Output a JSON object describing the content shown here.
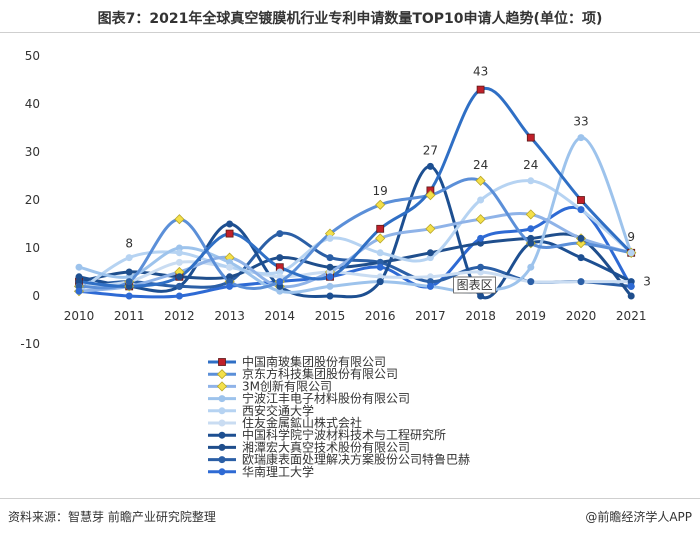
{
  "title": "图表7：2021年全球真空镀膜机行业专利申请数量TOP10申请人趋势(单位：项)",
  "source": "资料来源：智慧芽 前瞻产业研究院整理",
  "brand": "@前瞻经济学人APP",
  "chart_area_label": "图表区",
  "chart_data": {
    "type": "line",
    "x": [
      "2010",
      "2011",
      "2012",
      "2013",
      "2014",
      "2015",
      "2016",
      "2017",
      "2018",
      "2019",
      "2020",
      "2021"
    ],
    "ylim": [
      -10,
      50
    ],
    "yticks": [
      "-10",
      "0",
      "10",
      "20",
      "30",
      "40",
      "50"
    ],
    "grid": false,
    "legend_position": "bottom",
    "series": [
      {
        "name": "中国南玻集团股份有限公司",
        "color": "#2f6fc5",
        "marker": "square-red",
        "values": [
          3,
          2,
          4,
          13,
          6,
          4,
          14,
          22,
          43,
          33,
          20,
          9
        ]
      },
      {
        "name": "京东方科技集团股份有限公司",
        "color": "#5b8fd8",
        "marker": "diamond-yellow",
        "values": [
          2,
          3,
          16,
          3,
          3,
          13,
          19,
          21,
          24,
          11,
          11,
          9
        ]
      },
      {
        "name": "3M创新有限公司",
        "color": "#8fb3e8",
        "marker": "diamond-yellow",
        "values": [
          1,
          2,
          5,
          8,
          2,
          5,
          12,
          14,
          16,
          17,
          12,
          9
        ]
      },
      {
        "name": "宁波江丰电子材料股份有限公司",
        "color": "#9dc3ec",
        "marker": "circle",
        "values": [
          6,
          4,
          10,
          7,
          1,
          2,
          3,
          2,
          1,
          6,
          33,
          9
        ]
      },
      {
        "name": "西安交通大学",
        "color": "#b6d3f2",
        "marker": "circle",
        "values": [
          1,
          8,
          9,
          6,
          5,
          12,
          9,
          8,
          20,
          24,
          18,
          9
        ]
      },
      {
        "name": "住友金属鉱山株式会社",
        "color": "#c9dcf2",
        "marker": "circle",
        "values": [
          2,
          3,
          7,
          6,
          4,
          5,
          4,
          4,
          5,
          3,
          3,
          3
        ]
      },
      {
        "name": "中国科学院宁波材料技术与工程研究所",
        "color": "#1d4f91",
        "marker": "circle",
        "values": [
          4,
          2,
          2,
          15,
          2,
          0,
          3,
          27,
          0,
          11,
          8,
          3
        ]
      },
      {
        "name": "湘潭宏大真空技术股份有限公司",
        "color": "#1f4e8c",
        "marker": "circle",
        "values": [
          3,
          5,
          4,
          4,
          8,
          6,
          7,
          9,
          11,
          12,
          12,
          0
        ]
      },
      {
        "name": "欧瑞康表面处理解决方案股份公司特鲁巴赫",
        "color": "#2b5fa6",
        "marker": "circle",
        "values": [
          2,
          3,
          2,
          3,
          13,
          8,
          7,
          3,
          6,
          3,
          3,
          2
        ]
      },
      {
        "name": "华南理工大学",
        "color": "#2e6ad4",
        "marker": "circle",
        "values": [
          1,
          0,
          0,
          2,
          3,
          4,
          6,
          2,
          12,
          14,
          18,
          2
        ]
      }
    ],
    "data_labels": [
      {
        "x": "2011",
        "text": "8"
      },
      {
        "x": "2016",
        "text": "19"
      },
      {
        "x": "2017",
        "text": "27"
      },
      {
        "x": "2018",
        "text": "43"
      },
      {
        "x": "2018",
        "text": "24"
      },
      {
        "x": "2019",
        "text": "24"
      },
      {
        "x": "2020",
        "text": "33"
      },
      {
        "x": "2021",
        "text": "9"
      },
      {
        "x": "2021",
        "text": "3"
      }
    ]
  }
}
